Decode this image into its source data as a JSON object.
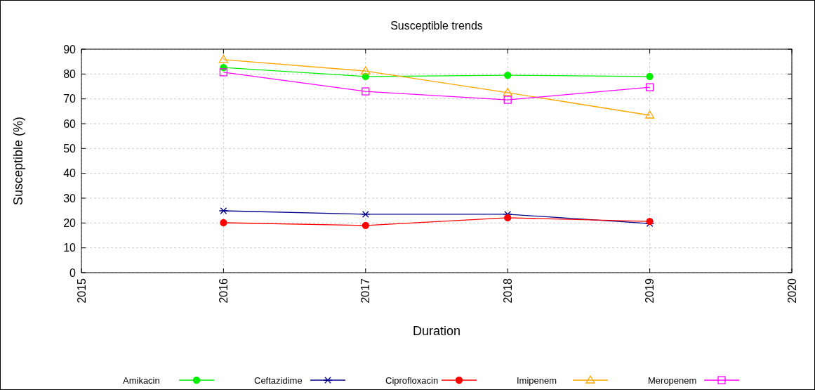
{
  "chart_data": {
    "type": "line",
    "title": "Susceptible trends",
    "xlabel": "Duration",
    "ylabel": "Susceptible (%)",
    "x": [
      2016,
      2017,
      2018,
      2019
    ],
    "xlim": [
      2015,
      2020
    ],
    "xticks": [
      2015,
      2016,
      2017,
      2018,
      2019,
      2020
    ],
    "ylim": [
      0,
      90
    ],
    "yticks": [
      0,
      10,
      20,
      30,
      40,
      50,
      60,
      70,
      80,
      90
    ],
    "grid": true,
    "legend": "bottom",
    "series": [
      {
        "name": "Amikacin",
        "color": "#00ee00",
        "marker": "circle",
        "values": [
          82.6,
          79.0,
          79.5,
          79.0
        ]
      },
      {
        "name": "Ceftazidime",
        "color": "#00008b",
        "marker": "cross",
        "values": [
          24.9,
          23.5,
          23.5,
          19.8
        ]
      },
      {
        "name": "Ciprofloxacin",
        "color": "#ff0000",
        "marker": "circle",
        "values": [
          20.1,
          19.0,
          22.1,
          20.6
        ]
      },
      {
        "name": "Imipenem",
        "color": "#ffa500",
        "marker": "triangle",
        "values": [
          85.8,
          81.2,
          72.5,
          63.4
        ]
      },
      {
        "name": "Meropenem",
        "color": "#ff00ff",
        "marker": "square",
        "values": [
          80.7,
          73.0,
          69.6,
          74.7
        ]
      }
    ]
  }
}
